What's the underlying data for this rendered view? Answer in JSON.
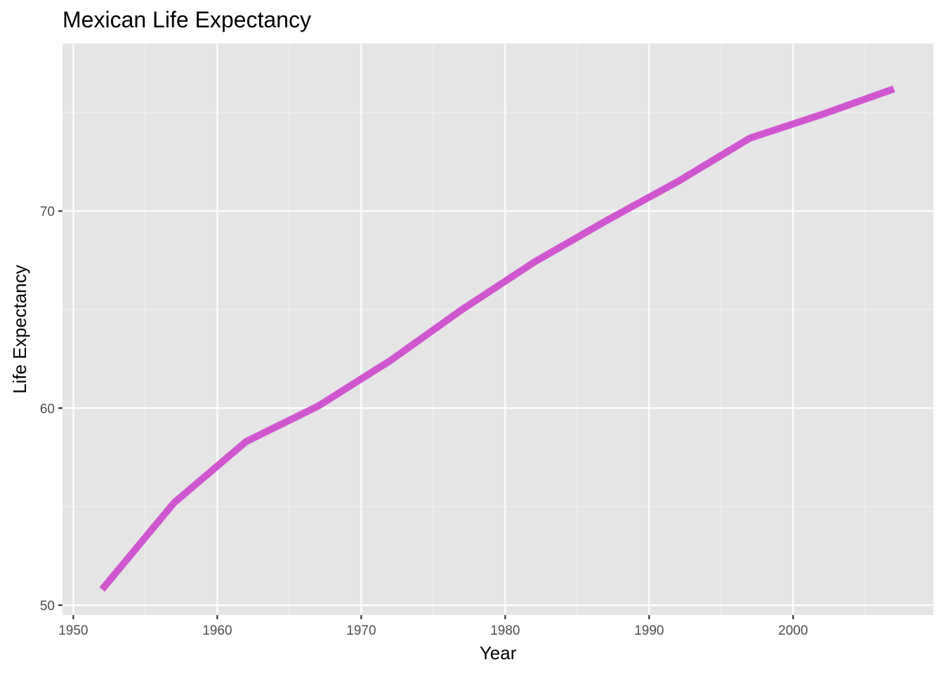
{
  "chart_data": {
    "type": "line",
    "title": "Mexican Life Expectancy",
    "xlabel": "Year",
    "ylabel": "Life Expectancy",
    "xlim": [
      1949.25,
      2009.75
    ],
    "ylim": [
      49.5,
      78.5
    ],
    "x_ticks": [
      1950,
      1960,
      1970,
      1980,
      1990,
      2000
    ],
    "x_minor_ticks": [
      1955,
      1965,
      1975,
      1985,
      1995,
      2005
    ],
    "y_ticks": [
      50,
      60,
      70
    ],
    "y_minor_ticks": [
      55,
      65,
      75
    ],
    "grid": true,
    "legend": "none",
    "series": [
      {
        "x": [
          1952,
          1957,
          1962,
          1967,
          1972,
          1977,
          1982,
          1987,
          1992,
          1997,
          2002,
          2007
        ],
        "y": [
          50.8,
          55.2,
          58.3,
          60.1,
          62.4,
          65.0,
          67.4,
          69.5,
          71.5,
          73.7,
          74.9,
          76.2
        ]
      }
    ],
    "colors": {
      "line": "#d056d0",
      "panel_background": "#e5e5e5",
      "grid_major": "#ffffff",
      "grid_minor": "#f2f2f2",
      "tick_label": "#4d4d4d",
      "tick_mark": "#333333"
    }
  }
}
